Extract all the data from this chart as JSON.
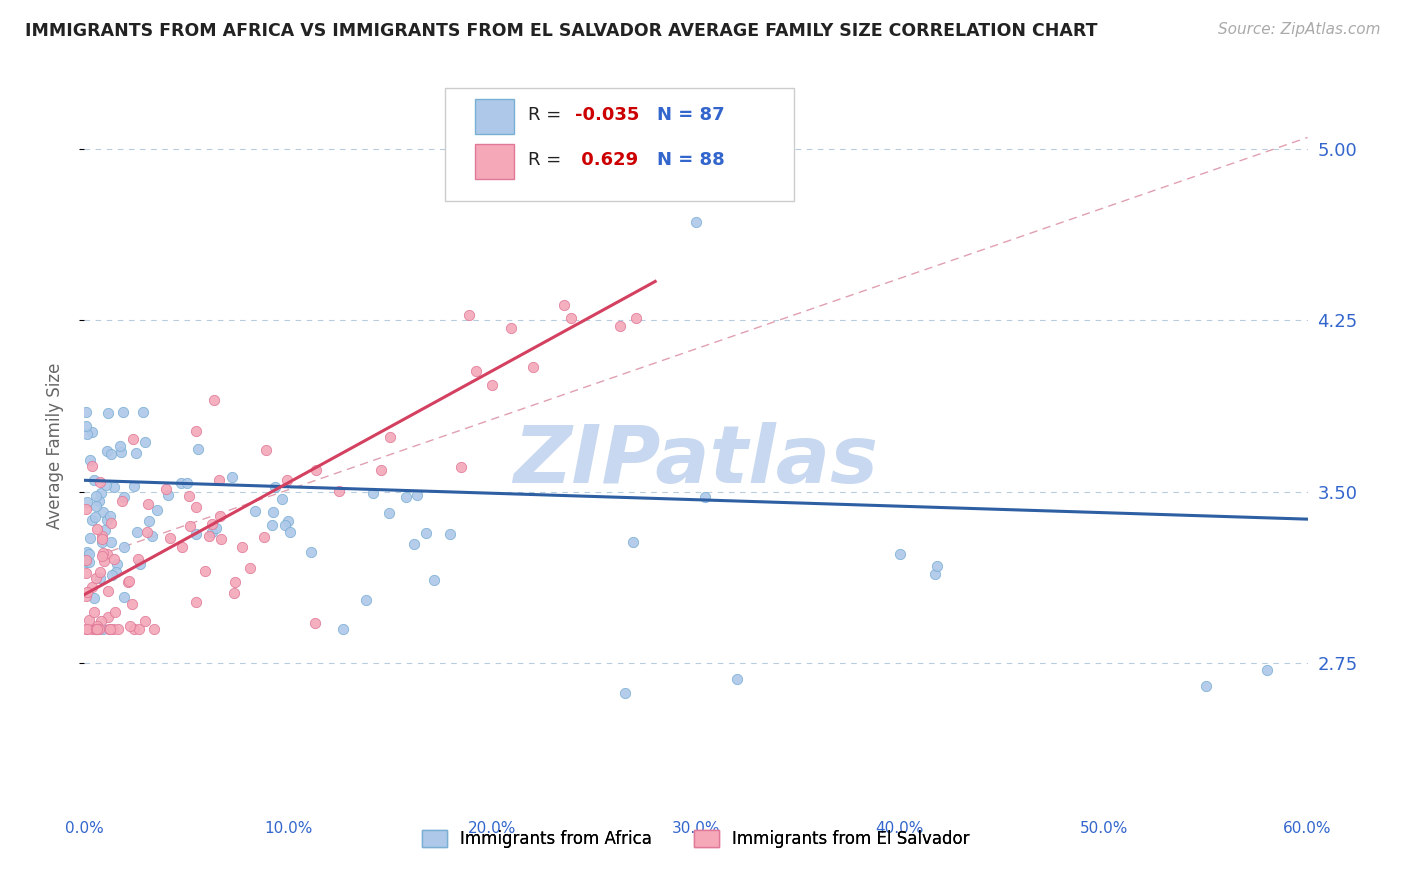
{
  "title": "IMMIGRANTS FROM AFRICA VS IMMIGRANTS FROM EL SALVADOR AVERAGE FAMILY SIZE CORRELATION CHART",
  "source": "Source: ZipAtlas.com",
  "ylabel": "Average Family Size",
  "xlim": [
    0.0,
    0.6
  ],
  "ylim": [
    2.1,
    5.3
  ],
  "yticks": [
    2.75,
    3.5,
    4.25,
    5.0
  ],
  "ytick_labels": [
    "2.75",
    "3.50",
    "4.25",
    "5.00"
  ],
  "xticks": [
    0.0,
    0.1,
    0.2,
    0.3,
    0.4,
    0.5,
    0.6
  ],
  "xtick_labels": [
    "0.0%",
    "10.0%",
    "20.0%",
    "30.0%",
    "40.0%",
    "50.0%",
    "60.0%"
  ],
  "series_africa": {
    "label": "Immigrants from Africa",
    "color": "#adc8e8",
    "edge_color": "#7aafd4",
    "R": -0.035,
    "N": 87,
    "trend_color": "#2e5fa3"
  },
  "series_salvador": {
    "label": "Immigrants from El Salvador",
    "color": "#f4a8b8",
    "edge_color": "#e07898",
    "R": 0.629,
    "N": 88,
    "trend_color": "#d44060"
  },
  "legend_R_color": "#cc0000",
  "legend_N_color": "#3366cc",
  "watermark": "ZIPatlas",
  "watermark_color": "#c8d8f0",
  "background_color": "#ffffff",
  "grid_color": "#b8cce0",
  "title_color": "#222222",
  "axis_color": "#3366cc",
  "dashed_line_color": "#e0a0b0"
}
